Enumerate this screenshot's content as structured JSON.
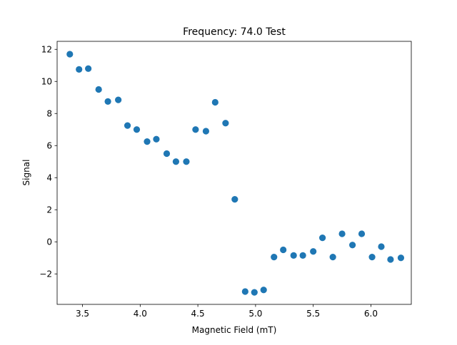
{
  "chart_data": {
    "type": "scatter",
    "title": "Frequency: 74.0 Test",
    "xlabel": "Magnetic Field (mT)",
    "ylabel": "Signal",
    "xlim": [
      3.28,
      6.35
    ],
    "ylim": [
      -3.9,
      12.5
    ],
    "xticks": [
      3.5,
      4.0,
      4.5,
      5.0,
      5.5,
      6.0
    ],
    "xtick_labels": [
      "3.5",
      "4.0",
      "4.5",
      "5.0",
      "5.5",
      "6.0"
    ],
    "yticks": [
      -2,
      0,
      2,
      4,
      6,
      8,
      10,
      12
    ],
    "ytick_labels": [
      "−2",
      "0",
      "2",
      "4",
      "6",
      "8",
      "10",
      "12"
    ],
    "grid": false,
    "legend": false,
    "marker_color": "#1f77b4",
    "series": [
      {
        "points": [
          [
            3.39,
            11.7
          ],
          [
            3.47,
            10.75
          ],
          [
            3.55,
            10.8
          ],
          [
            3.64,
            9.5
          ],
          [
            3.72,
            8.75
          ],
          [
            3.81,
            8.85
          ],
          [
            3.89,
            7.25
          ],
          [
            3.97,
            7.0
          ],
          [
            4.06,
            6.25
          ],
          [
            4.14,
            6.4
          ],
          [
            4.23,
            5.5
          ],
          [
            4.31,
            5.0
          ],
          [
            4.4,
            5.0
          ],
          [
            4.48,
            7.0
          ],
          [
            4.57,
            6.9
          ],
          [
            4.65,
            8.7
          ],
          [
            4.74,
            7.4
          ],
          [
            4.82,
            2.65
          ],
          [
            4.91,
            -3.1
          ],
          [
            4.99,
            -3.15
          ],
          [
            5.07,
            -3.0
          ],
          [
            5.16,
            -0.95
          ],
          [
            5.24,
            -0.5
          ],
          [
            5.33,
            -0.85
          ],
          [
            5.41,
            -0.85
          ],
          [
            5.5,
            -0.6
          ],
          [
            5.58,
            0.25
          ],
          [
            5.67,
            -0.95
          ],
          [
            5.75,
            0.5
          ],
          [
            5.84,
            -0.2
          ],
          [
            5.92,
            0.5
          ],
          [
            6.01,
            -0.95
          ],
          [
            6.09,
            -0.3
          ],
          [
            6.17,
            -1.1
          ],
          [
            6.26,
            -1.0
          ]
        ]
      }
    ]
  }
}
